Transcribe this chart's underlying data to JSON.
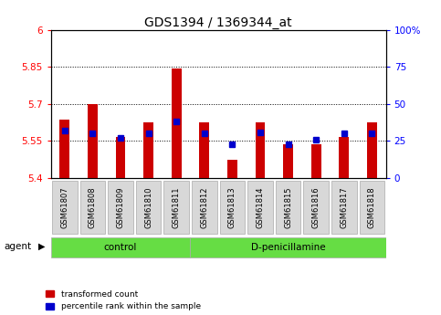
{
  "title": "GDS1394 / 1369344_at",
  "samples": [
    "GSM61807",
    "GSM61808",
    "GSM61809",
    "GSM61810",
    "GSM61811",
    "GSM61812",
    "GSM61813",
    "GSM61814",
    "GSM61815",
    "GSM61816",
    "GSM61817",
    "GSM61818"
  ],
  "red_values": [
    5.635,
    5.7,
    5.565,
    5.625,
    5.845,
    5.625,
    5.475,
    5.625,
    5.535,
    5.535,
    5.565,
    5.625
  ],
  "blue_values": [
    32,
    30,
    27,
    30,
    38,
    30,
    23,
    31,
    23,
    26,
    30,
    30
  ],
  "ylim_left": [
    5.4,
    6.0
  ],
  "ylim_right": [
    0,
    100
  ],
  "yticks_left": [
    5.4,
    5.55,
    5.7,
    5.85,
    6.0
  ],
  "yticks_right": [
    0,
    25,
    50,
    75,
    100
  ],
  "ytick_labels_left": [
    "5.4",
    "5.55",
    "5.7",
    "5.85",
    "6"
  ],
  "ytick_labels_right": [
    "0",
    "25",
    "50",
    "75",
    "100%"
  ],
  "hlines": [
    5.55,
    5.7,
    5.85
  ],
  "control_n": 5,
  "control_label": "control",
  "dpen_label": "D-penicillamine",
  "agent_label": "agent",
  "red_color": "#cc0000",
  "blue_color": "#0000cc",
  "bar_width": 0.35,
  "legend_red": "transformed count",
  "legend_blue": "percentile rank within the sample",
  "tick_bg_color": "#d8d8d8",
  "green_color": "#66dd44",
  "title_fontsize": 10,
  "tick_fontsize": 7.5
}
